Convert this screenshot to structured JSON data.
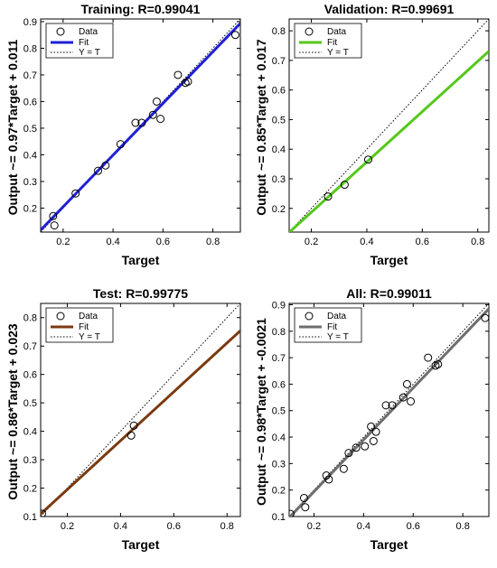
{
  "chart_data": [
    {
      "type": "scatter",
      "title": "Training: R=0.99041",
      "xlabel": "Target",
      "ylabel": "Output ~= 0.97*Target + 0.011",
      "xlim": [
        0.11,
        0.91
      ],
      "ylim": [
        0.11,
        0.91
      ],
      "xticks": [
        "0.2",
        "0.4",
        "0.6",
        "0.8"
      ],
      "xtick_values": [
        0.2,
        0.4,
        0.6,
        0.8
      ],
      "yticks": [
        "0.2",
        "0.3",
        "0.4",
        "0.5",
        "0.6",
        "0.7",
        "0.8",
        "0.9"
      ],
      "ytick_values": [
        0.2,
        0.3,
        0.4,
        0.5,
        0.6,
        0.7,
        0.8,
        0.9
      ],
      "fit": {
        "slope": 0.97,
        "intercept": 0.011,
        "color": "#1f1fd6",
        "width": 3
      },
      "points": [
        {
          "x": 0.16,
          "y": 0.17
        },
        {
          "x": 0.165,
          "y": 0.135
        },
        {
          "x": 0.25,
          "y": 0.255
        },
        {
          "x": 0.34,
          "y": 0.34
        },
        {
          "x": 0.37,
          "y": 0.36
        },
        {
          "x": 0.43,
          "y": 0.44
        },
        {
          "x": 0.49,
          "y": 0.52
        },
        {
          "x": 0.515,
          "y": 0.52
        },
        {
          "x": 0.56,
          "y": 0.55
        },
        {
          "x": 0.575,
          "y": 0.6
        },
        {
          "x": 0.59,
          "y": 0.535
        },
        {
          "x": 0.66,
          "y": 0.7
        },
        {
          "x": 0.69,
          "y": 0.67
        },
        {
          "x": 0.7,
          "y": 0.675
        },
        {
          "x": 0.89,
          "y": 0.85
        }
      ],
      "legend": {
        "data": "Data",
        "fit": "Fit",
        "yt": "Y = T"
      },
      "legend_placement": "top-left"
    },
    {
      "type": "scatter",
      "title": "Validation: R=0.99691",
      "xlabel": "Target",
      "ylabel": "Output ~= 0.85*Target + 0.017",
      "xlim": [
        0.12,
        0.84
      ],
      "ylim": [
        0.12,
        0.84
      ],
      "xticks": [
        "0.2",
        "0.4",
        "0.6",
        "0.8"
      ],
      "xtick_values": [
        0.2,
        0.4,
        0.6,
        0.8
      ],
      "yticks": [
        "0.2",
        "0.3",
        "0.4",
        "0.5",
        "0.6",
        "0.7",
        "0.8"
      ],
      "ytick_values": [
        0.2,
        0.3,
        0.4,
        0.5,
        0.6,
        0.7,
        0.8
      ],
      "fit": {
        "slope": 0.85,
        "intercept": 0.017,
        "color": "#55c81a",
        "width": 3
      },
      "points": [
        {
          "x": 0.26,
          "y": 0.24
        },
        {
          "x": 0.32,
          "y": 0.28
        },
        {
          "x": 0.405,
          "y": 0.365
        }
      ],
      "legend": {
        "data": "Data",
        "fit": "Fit",
        "yt": "Y = T"
      },
      "legend_placement": "top-left"
    },
    {
      "type": "scatter",
      "title": "Test: R=0.99775",
      "xlabel": "Target",
      "ylabel": "Output ~= 0.86*Target + 0.023",
      "xlim": [
        0.1,
        0.85
      ],
      "ylim": [
        0.1,
        0.85
      ],
      "xticks": [
        "0.2",
        "0.4",
        "0.6",
        "0.8"
      ],
      "xtick_values": [
        0.2,
        0.4,
        0.6,
        0.8
      ],
      "yticks": [
        "0.1",
        "0.2",
        "0.3",
        "0.4",
        "0.5",
        "0.6",
        "0.7",
        "0.8"
      ],
      "ytick_values": [
        0.1,
        0.2,
        0.3,
        0.4,
        0.5,
        0.6,
        0.7,
        0.8
      ],
      "fit": {
        "slope": 0.86,
        "intercept": 0.023,
        "color": "#7a3a10",
        "width": 3
      },
      "points": [
        {
          "x": 0.105,
          "y": 0.11
        },
        {
          "x": 0.44,
          "y": 0.385
        },
        {
          "x": 0.45,
          "y": 0.42
        }
      ],
      "legend": {
        "data": "Data",
        "fit": "Fit",
        "yt": "Y = T"
      },
      "legend_placement": "top-left"
    },
    {
      "type": "scatter",
      "title": "All: R=0.99011",
      "xlabel": "Target",
      "ylabel": "Output ~= 0.98*Target + -0.0021",
      "xlim": [
        0.1,
        0.905
      ],
      "ylim": [
        0.1,
        0.905
      ],
      "xticks": [
        "0.2",
        "0.4",
        "0.6",
        "0.8"
      ],
      "xtick_values": [
        0.2,
        0.4,
        0.6,
        0.8
      ],
      "yticks": [
        "0.1",
        "0.2",
        "0.3",
        "0.4",
        "0.5",
        "0.6",
        "0.7",
        "0.8",
        "0.9"
      ],
      "ytick_values": [
        0.1,
        0.2,
        0.3,
        0.4,
        0.5,
        0.6,
        0.7,
        0.8,
        0.9
      ],
      "fit": {
        "slope": 0.98,
        "intercept": -0.0021,
        "color": "#6e6e6e",
        "width": 3
      },
      "points": [
        {
          "x": 0.105,
          "y": 0.11
        },
        {
          "x": 0.16,
          "y": 0.17
        },
        {
          "x": 0.165,
          "y": 0.135
        },
        {
          "x": 0.25,
          "y": 0.255
        },
        {
          "x": 0.26,
          "y": 0.24
        },
        {
          "x": 0.32,
          "y": 0.28
        },
        {
          "x": 0.34,
          "y": 0.34
        },
        {
          "x": 0.37,
          "y": 0.36
        },
        {
          "x": 0.405,
          "y": 0.365
        },
        {
          "x": 0.43,
          "y": 0.44
        },
        {
          "x": 0.44,
          "y": 0.385
        },
        {
          "x": 0.45,
          "y": 0.42
        },
        {
          "x": 0.49,
          "y": 0.52
        },
        {
          "x": 0.515,
          "y": 0.52
        },
        {
          "x": 0.56,
          "y": 0.55
        },
        {
          "x": 0.575,
          "y": 0.6
        },
        {
          "x": 0.59,
          "y": 0.535
        },
        {
          "x": 0.66,
          "y": 0.7
        },
        {
          "x": 0.69,
          "y": 0.67
        },
        {
          "x": 0.7,
          "y": 0.675
        },
        {
          "x": 0.89,
          "y": 0.85
        }
      ],
      "legend": {
        "data": "Data",
        "fit": "Fit",
        "yt": "Y = T"
      },
      "legend_placement": "top-left"
    }
  ]
}
